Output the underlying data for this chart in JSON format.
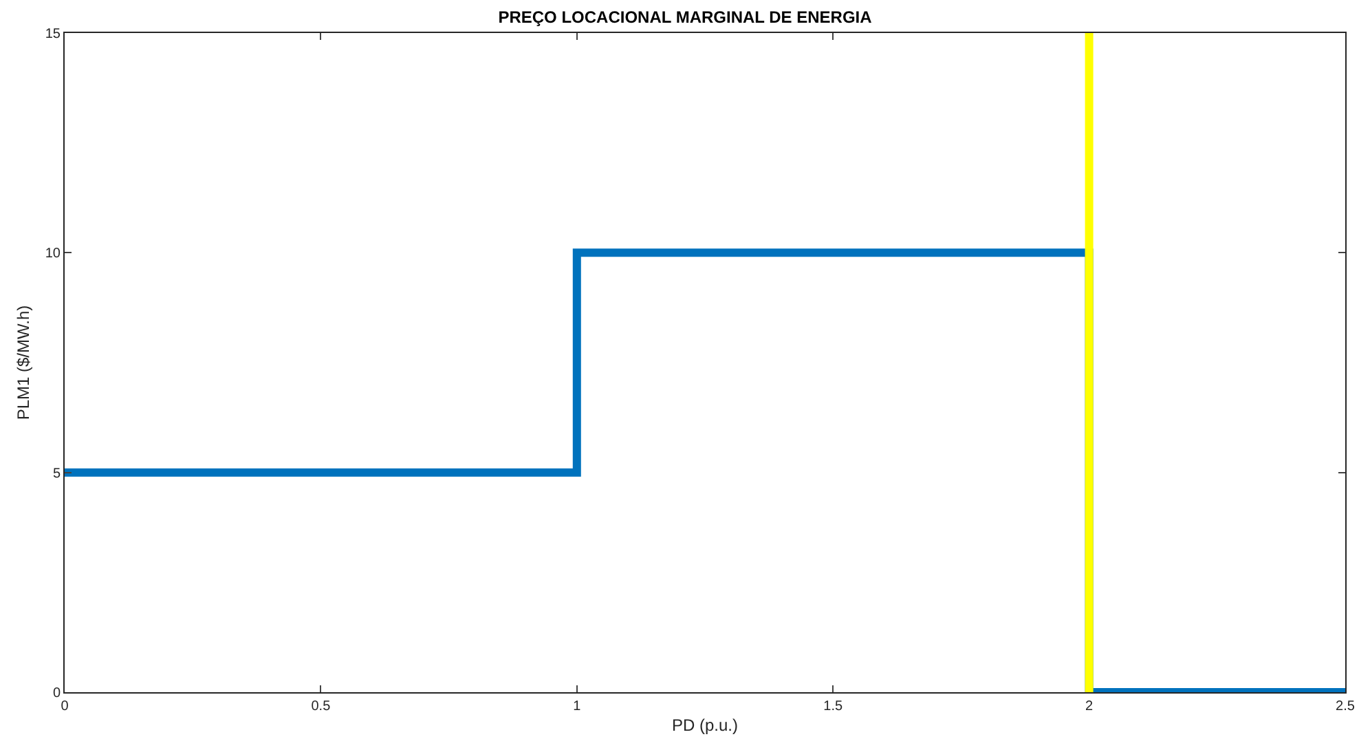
{
  "chart_data": {
    "type": "step",
    "title": "PREÇO LOCACIONAL MARGINAL DE ENERGIA",
    "xlabel": "PD (p.u.)",
    "ylabel": "PLM1 ($/MW.h)",
    "x": [
      0,
      1,
      2,
      2.5
    ],
    "series": [
      {
        "color": "#0072bd",
        "values": [
          5,
          10,
          0,
          0
        ]
      }
    ],
    "xlim": [
      0,
      2.5
    ],
    "xticks": [
      0,
      0.5,
      1,
      1.5,
      2,
      2.5
    ],
    "ylim": [
      0,
      15
    ],
    "yticks": [
      0,
      5,
      10,
      15
    ],
    "ref_lines": [
      {
        "axis": "x",
        "value": 2,
        "color": "#ffff00"
      }
    ]
  }
}
